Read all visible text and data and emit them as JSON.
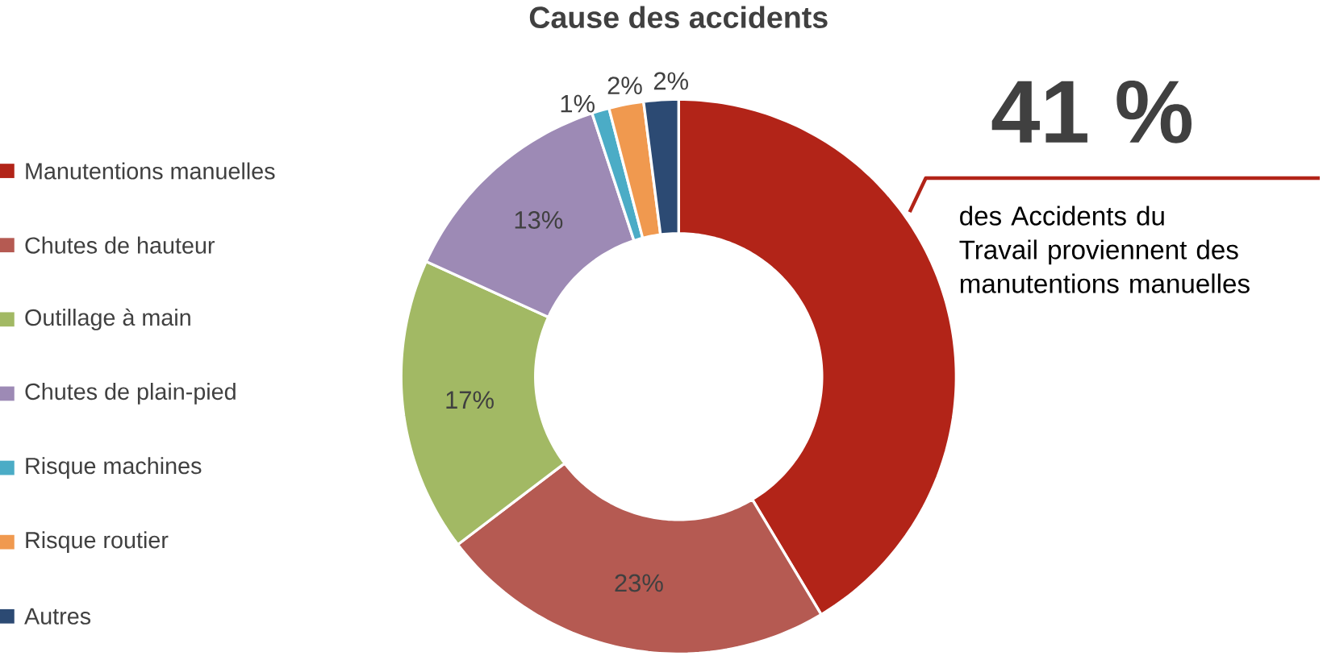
{
  "chart_data": {
    "type": "donut",
    "title": "Cause des accidents",
    "categories": [
      "Manutentions manuelles",
      "Chutes de hauteur",
      "Outillage à main",
      "Chutes de plain-pied",
      "Risque machines",
      "Risque routier",
      "Autres"
    ],
    "values": [
      41,
      23,
      17,
      13,
      1,
      2,
      2
    ],
    "value_labels": [
      null,
      "23%",
      "17%",
      "13%",
      "1%",
      "2%",
      "2%"
    ],
    "colors": [
      "#b22418",
      "#b55a52",
      "#a2b964",
      "#9d8ab5",
      "#4bacc6",
      "#f0994f",
      "#2c4a73"
    ],
    "legend": "left",
    "annotations": [
      "41 %",
      "des Accidents du Travail proviennent des manutentions manuelles"
    ]
  }
}
